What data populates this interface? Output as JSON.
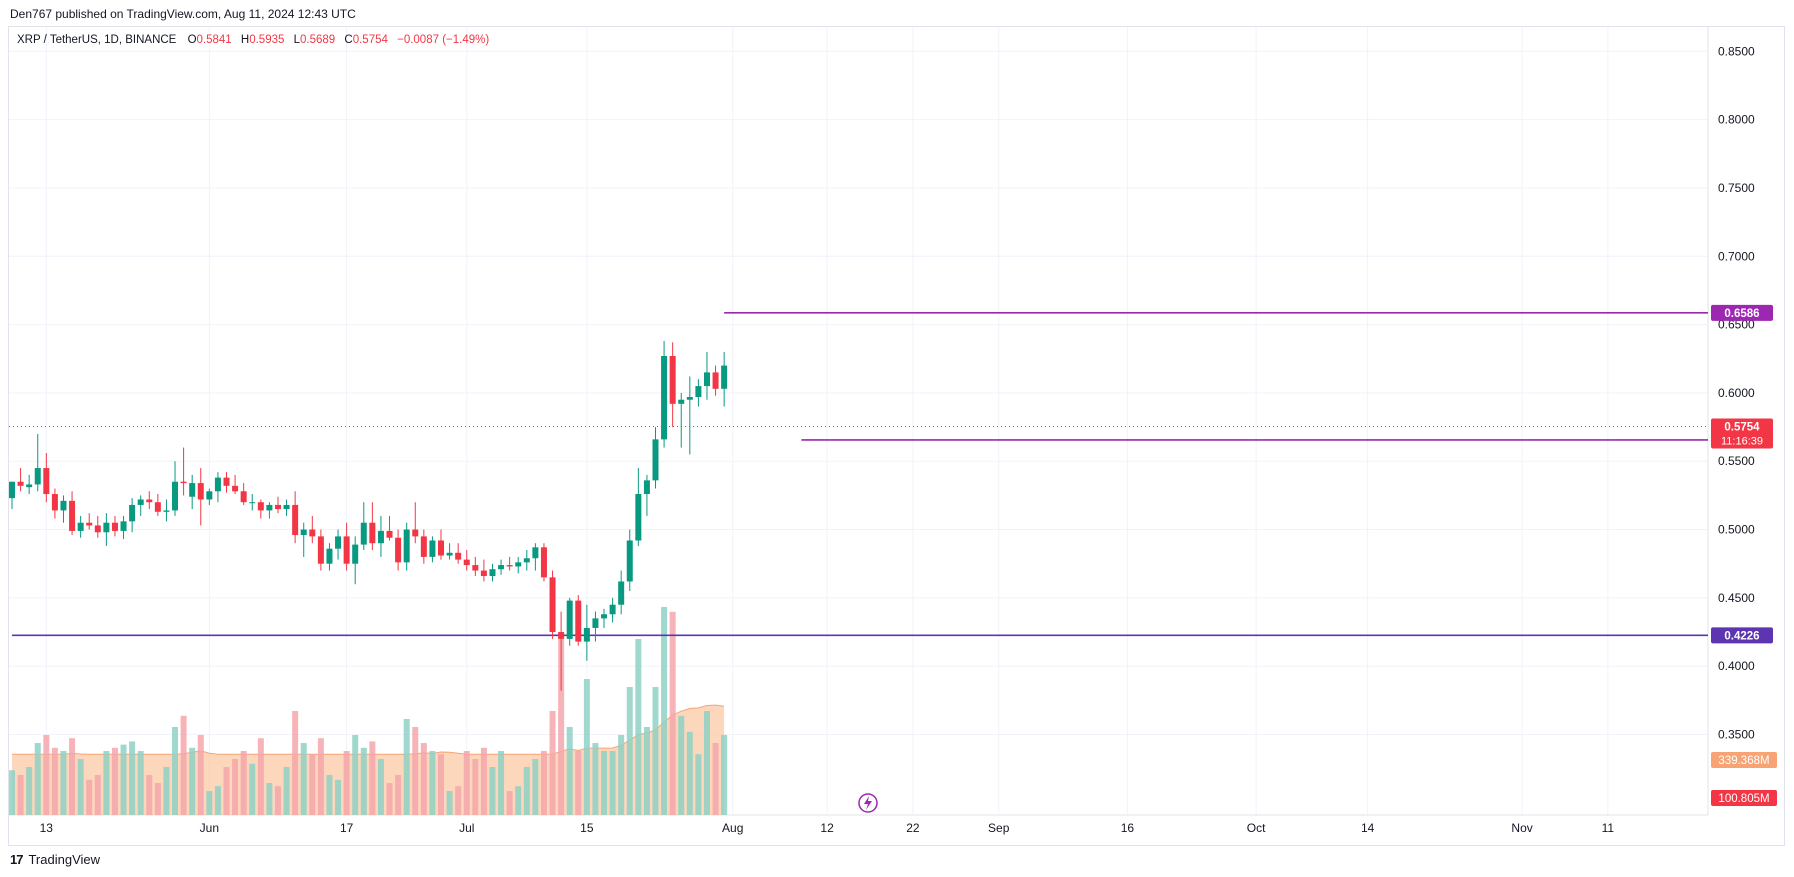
{
  "publish_line": "Den767 published on TradingView.com, Aug 11, 2024 12:43 UTC",
  "legend": {
    "symbol": "XRP / TetherUS, 1D, BINANCE",
    "open_label": "O",
    "open": "0.5841",
    "high_label": "H",
    "high": "0.5935",
    "low_label": "L",
    "low": "0.5689",
    "close_label": "C",
    "close": "0.5754",
    "change": "−0.0087 (−1.49%)"
  },
  "footer": {
    "logo": "17",
    "brand": "TradingView"
  },
  "colors": {
    "up": "#089981",
    "down": "#f23645",
    "up_vol": "#8fd1c6",
    "down_vol": "#f5a6ab",
    "vol_ma_fill": "#fcc9a6",
    "vol_ma_line": "#f7a374",
    "resistance": "#9c27b0",
    "support": "#5e35b1",
    "grid": "#f0f3fa",
    "axis_text": "#131722"
  },
  "chart_data": {
    "type": "candlestick",
    "symbol": "XRP / TetherUS",
    "interval": "1D",
    "exchange": "BINANCE",
    "y_ticks": [
      "0.8500",
      "0.8000",
      "0.7500",
      "0.7000",
      "0.6500",
      "0.6000",
      "0.5500",
      "0.5000",
      "0.4500",
      "0.4000",
      "0.3500"
    ],
    "ylim": [
      0.345,
      0.865
    ],
    "x_ticks": [
      "13",
      "Jun",
      "17",
      "Jul",
      "15",
      "Aug",
      "12",
      "22",
      "Sep",
      "16",
      "Oct",
      "14",
      "Nov",
      "11"
    ],
    "horizontal_lines": [
      {
        "value": 0.6586,
        "label": "0.6586",
        "color": "#9c27b0",
        "start_date": "2024-07-31"
      },
      {
        "value": 0.5656,
        "label": "0.5656",
        "color": "#9c27b0",
        "start_date": "2024-08-09"
      },
      {
        "value": 0.4226,
        "label": "0.4226",
        "color": "#5e35b1",
        "start_date": "2024-05-09"
      }
    ],
    "price_label": {
      "value": "0.5754",
      "countdown": "11:16:39"
    },
    "volume_labels": {
      "ma": "339.368M",
      "volume": "100.805M"
    },
    "candles": [
      {
        "d": "2024-05-09",
        "o": 0.523,
        "h": 0.535,
        "l": 0.515,
        "c": 0.535,
        "v": 0.28
      },
      {
        "d": "2024-05-10",
        "o": 0.535,
        "h": 0.545,
        "l": 0.528,
        "c": 0.532,
        "v": 0.25
      },
      {
        "d": "2024-05-11",
        "o": 0.531,
        "h": 0.54,
        "l": 0.526,
        "c": 0.533,
        "v": 0.3
      },
      {
        "d": "2024-05-12",
        "o": 0.533,
        "h": 0.57,
        "l": 0.528,
        "c": 0.545,
        "v": 0.45
      },
      {
        "d": "2024-05-13",
        "o": 0.545,
        "h": 0.556,
        "l": 0.52,
        "c": 0.526,
        "v": 0.5
      },
      {
        "d": "2024-05-14",
        "o": 0.526,
        "h": 0.53,
        "l": 0.508,
        "c": 0.514,
        "v": 0.42
      },
      {
        "d": "2024-05-15",
        "o": 0.514,
        "h": 0.525,
        "l": 0.505,
        "c": 0.521,
        "v": 0.4
      },
      {
        "d": "2024-05-16",
        "o": 0.521,
        "h": 0.528,
        "l": 0.496,
        "c": 0.499,
        "v": 0.48
      },
      {
        "d": "2024-05-17",
        "o": 0.499,
        "h": 0.51,
        "l": 0.494,
        "c": 0.505,
        "v": 0.35
      },
      {
        "d": "2024-05-18",
        "o": 0.505,
        "h": 0.512,
        "l": 0.5,
        "c": 0.503,
        "v": 0.22
      },
      {
        "d": "2024-05-19",
        "o": 0.503,
        "h": 0.51,
        "l": 0.494,
        "c": 0.498,
        "v": 0.25
      },
      {
        "d": "2024-05-20",
        "o": 0.498,
        "h": 0.512,
        "l": 0.488,
        "c": 0.505,
        "v": 0.4
      },
      {
        "d": "2024-05-21",
        "o": 0.505,
        "h": 0.51,
        "l": 0.495,
        "c": 0.499,
        "v": 0.42
      },
      {
        "d": "2024-05-22",
        "o": 0.499,
        "h": 0.51,
        "l": 0.493,
        "c": 0.506,
        "v": 0.44
      },
      {
        "d": "2024-05-23",
        "o": 0.506,
        "h": 0.523,
        "l": 0.498,
        "c": 0.518,
        "v": 0.46
      },
      {
        "d": "2024-05-24",
        "o": 0.518,
        "h": 0.525,
        "l": 0.51,
        "c": 0.522,
        "v": 0.4
      },
      {
        "d": "2024-05-25",
        "o": 0.522,
        "h": 0.528,
        "l": 0.515,
        "c": 0.52,
        "v": 0.25
      },
      {
        "d": "2024-05-26",
        "o": 0.52,
        "h": 0.526,
        "l": 0.51,
        "c": 0.513,
        "v": 0.2
      },
      {
        "d": "2024-05-27",
        "o": 0.513,
        "h": 0.522,
        "l": 0.506,
        "c": 0.514,
        "v": 0.3
      },
      {
        "d": "2024-05-28",
        "o": 0.514,
        "h": 0.55,
        "l": 0.51,
        "c": 0.535,
        "v": 0.55
      },
      {
        "d": "2024-05-29",
        "o": 0.535,
        "h": 0.56,
        "l": 0.525,
        "c": 0.534,
        "v": 0.62
      },
      {
        "d": "2024-05-30",
        "o": 0.524,
        "h": 0.54,
        "l": 0.515,
        "c": 0.534,
        "v": 0.42
      },
      {
        "d": "2024-05-31",
        "o": 0.534,
        "h": 0.545,
        "l": 0.503,
        "c": 0.522,
        "v": 0.5
      },
      {
        "d": "2024-06-01",
        "o": 0.522,
        "h": 0.53,
        "l": 0.518,
        "c": 0.528,
        "v": 0.15
      },
      {
        "d": "2024-06-02",
        "o": 0.528,
        "h": 0.542,
        "l": 0.52,
        "c": 0.538,
        "v": 0.18
      },
      {
        "d": "2024-06-03",
        "o": 0.538,
        "h": 0.542,
        "l": 0.527,
        "c": 0.532,
        "v": 0.3
      },
      {
        "d": "2024-06-04",
        "o": 0.532,
        "h": 0.54,
        "l": 0.526,
        "c": 0.528,
        "v": 0.35
      },
      {
        "d": "2024-06-05",
        "o": 0.528,
        "h": 0.534,
        "l": 0.518,
        "c": 0.52,
        "v": 0.4
      },
      {
        "d": "2024-06-06",
        "o": 0.52,
        "h": 0.526,
        "l": 0.514,
        "c": 0.52,
        "v": 0.32
      },
      {
        "d": "2024-06-07",
        "o": 0.52,
        "h": 0.522,
        "l": 0.508,
        "c": 0.514,
        "v": 0.48
      },
      {
        "d": "2024-06-08",
        "o": 0.514,
        "h": 0.52,
        "l": 0.508,
        "c": 0.518,
        "v": 0.2
      },
      {
        "d": "2024-06-09",
        "o": 0.518,
        "h": 0.524,
        "l": 0.512,
        "c": 0.515,
        "v": 0.18
      },
      {
        "d": "2024-06-10",
        "o": 0.515,
        "h": 0.522,
        "l": 0.51,
        "c": 0.518,
        "v": 0.3
      },
      {
        "d": "2024-06-11",
        "o": 0.518,
        "h": 0.528,
        "l": 0.49,
        "c": 0.496,
        "v": 0.65
      },
      {
        "d": "2024-06-12",
        "o": 0.496,
        "h": 0.505,
        "l": 0.48,
        "c": 0.5,
        "v": 0.45
      },
      {
        "d": "2024-06-13",
        "o": 0.5,
        "h": 0.51,
        "l": 0.49,
        "c": 0.495,
        "v": 0.38
      },
      {
        "d": "2024-06-14",
        "o": 0.495,
        "h": 0.5,
        "l": 0.47,
        "c": 0.475,
        "v": 0.48
      },
      {
        "d": "2024-06-15",
        "o": 0.475,
        "h": 0.49,
        "l": 0.47,
        "c": 0.486,
        "v": 0.25
      },
      {
        "d": "2024-06-16",
        "o": 0.486,
        "h": 0.5,
        "l": 0.478,
        "c": 0.495,
        "v": 0.22
      },
      {
        "d": "2024-06-17",
        "o": 0.495,
        "h": 0.505,
        "l": 0.47,
        "c": 0.475,
        "v": 0.4
      },
      {
        "d": "2024-06-18",
        "o": 0.475,
        "h": 0.495,
        "l": 0.46,
        "c": 0.489,
        "v": 0.5
      },
      {
        "d": "2024-06-19",
        "o": 0.489,
        "h": 0.52,
        "l": 0.485,
        "c": 0.505,
        "v": 0.42
      },
      {
        "d": "2024-06-20",
        "o": 0.505,
        "h": 0.52,
        "l": 0.485,
        "c": 0.49,
        "v": 0.46
      },
      {
        "d": "2024-06-21",
        "o": 0.49,
        "h": 0.51,
        "l": 0.48,
        "c": 0.499,
        "v": 0.35
      },
      {
        "d": "2024-06-22",
        "o": 0.499,
        "h": 0.51,
        "l": 0.492,
        "c": 0.494,
        "v": 0.2
      },
      {
        "d": "2024-06-23",
        "o": 0.494,
        "h": 0.5,
        "l": 0.47,
        "c": 0.476,
        "v": 0.25
      },
      {
        "d": "2024-06-24",
        "o": 0.476,
        "h": 0.505,
        "l": 0.47,
        "c": 0.5,
        "v": 0.6
      },
      {
        "d": "2024-06-25",
        "o": 0.5,
        "h": 0.52,
        "l": 0.49,
        "c": 0.495,
        "v": 0.55
      },
      {
        "d": "2024-06-26",
        "o": 0.495,
        "h": 0.5,
        "l": 0.475,
        "c": 0.48,
        "v": 0.45
      },
      {
        "d": "2024-06-27",
        "o": 0.48,
        "h": 0.495,
        "l": 0.476,
        "c": 0.492,
        "v": 0.4
      },
      {
        "d": "2024-06-28",
        "o": 0.492,
        "h": 0.5,
        "l": 0.478,
        "c": 0.481,
        "v": 0.38
      },
      {
        "d": "2024-06-29",
        "o": 0.481,
        "h": 0.49,
        "l": 0.478,
        "c": 0.483,
        "v": 0.15
      },
      {
        "d": "2024-06-30",
        "o": 0.483,
        "h": 0.49,
        "l": 0.475,
        "c": 0.478,
        "v": 0.18
      },
      {
        "d": "2024-07-01",
        "o": 0.478,
        "h": 0.485,
        "l": 0.47,
        "c": 0.474,
        "v": 0.4
      },
      {
        "d": "2024-07-02",
        "o": 0.474,
        "h": 0.48,
        "l": 0.466,
        "c": 0.47,
        "v": 0.35
      },
      {
        "d": "2024-07-03",
        "o": 0.47,
        "h": 0.478,
        "l": 0.462,
        "c": 0.466,
        "v": 0.42
      },
      {
        "d": "2024-07-04",
        "o": 0.466,
        "h": 0.475,
        "l": 0.462,
        "c": 0.471,
        "v": 0.3
      },
      {
        "d": "2024-07-05",
        "o": 0.471,
        "h": 0.478,
        "l": 0.467,
        "c": 0.474,
        "v": 0.4
      },
      {
        "d": "2024-07-06",
        "o": 0.474,
        "h": 0.48,
        "l": 0.47,
        "c": 0.473,
        "v": 0.15
      },
      {
        "d": "2024-07-07",
        "o": 0.473,
        "h": 0.48,
        "l": 0.468,
        "c": 0.476,
        "v": 0.18
      },
      {
        "d": "2024-07-08",
        "o": 0.476,
        "h": 0.485,
        "l": 0.47,
        "c": 0.479,
        "v": 0.3
      },
      {
        "d": "2024-07-09",
        "o": 0.479,
        "h": 0.49,
        "l": 0.47,
        "c": 0.487,
        "v": 0.35
      },
      {
        "d": "2024-07-10",
        "o": 0.487,
        "h": 0.49,
        "l": 0.462,
        "c": 0.465,
        "v": 0.4
      },
      {
        "d": "2024-07-11",
        "o": 0.465,
        "h": 0.47,
        "l": 0.42,
        "c": 0.425,
        "v": 0.65
      },
      {
        "d": "2024-07-12",
        "o": 0.425,
        "h": 0.44,
        "l": 0.382,
        "c": 0.42,
        "v": 1.1
      },
      {
        "d": "2024-07-13",
        "o": 0.42,
        "h": 0.45,
        "l": 0.415,
        "c": 0.448,
        "v": 0.55
      },
      {
        "d": "2024-07-14",
        "o": 0.448,
        "h": 0.452,
        "l": 0.415,
        "c": 0.418,
        "v": 0.4
      },
      {
        "d": "2024-07-15",
        "o": 0.418,
        "h": 0.445,
        "l": 0.404,
        "c": 0.428,
        "v": 0.85
      },
      {
        "d": "2024-07-16",
        "o": 0.428,
        "h": 0.44,
        "l": 0.418,
        "c": 0.435,
        "v": 0.45
      },
      {
        "d": "2024-07-17",
        "o": 0.435,
        "h": 0.442,
        "l": 0.428,
        "c": 0.438,
        "v": 0.4
      },
      {
        "d": "2024-07-18",
        "o": 0.438,
        "h": 0.45,
        "l": 0.432,
        "c": 0.445,
        "v": 0.4
      },
      {
        "d": "2024-07-19",
        "o": 0.445,
        "h": 0.47,
        "l": 0.438,
        "c": 0.462,
        "v": 0.5
      },
      {
        "d": "2024-07-20",
        "o": 0.462,
        "h": 0.5,
        "l": 0.455,
        "c": 0.492,
        "v": 0.8
      },
      {
        "d": "2024-07-21",
        "o": 0.492,
        "h": 0.545,
        "l": 0.488,
        "c": 0.526,
        "v": 1.1
      },
      {
        "d": "2024-07-22",
        "o": 0.526,
        "h": 0.54,
        "l": 0.51,
        "c": 0.536,
        "v": 0.55
      },
      {
        "d": "2024-07-23",
        "o": 0.536,
        "h": 0.575,
        "l": 0.53,
        "c": 0.566,
        "v": 0.8
      },
      {
        "d": "2024-07-24",
        "o": 0.566,
        "h": 0.638,
        "l": 0.56,
        "c": 0.627,
        "v": 1.3
      },
      {
        "d": "2024-07-25",
        "o": 0.627,
        "h": 0.637,
        "l": 0.575,
        "c": 0.592,
        "v": 1.27
      },
      {
        "d": "2024-07-26",
        "o": 0.592,
        "h": 0.6,
        "l": 0.56,
        "c": 0.595,
        "v": 0.62
      },
      {
        "d": "2024-07-27",
        "o": 0.595,
        "h": 0.612,
        "l": 0.555,
        "c": 0.597,
        "v": 0.52
      },
      {
        "d": "2024-07-28",
        "o": 0.597,
        "h": 0.61,
        "l": 0.59,
        "c": 0.605,
        "v": 0.38
      },
      {
        "d": "2024-07-29",
        "o": 0.605,
        "h": 0.63,
        "l": 0.595,
        "c": 0.615,
        "v": 0.65
      },
      {
        "d": "2024-07-30",
        "o": 0.615,
        "h": 0.62,
        "l": 0.598,
        "c": 0.603,
        "v": 0.45
      },
      {
        "d": "2024-07-31",
        "o": 0.603,
        "h": 0.63,
        "l": 0.59,
        "c": 0.62,
        "v": 0.5
      }
    ]
  }
}
